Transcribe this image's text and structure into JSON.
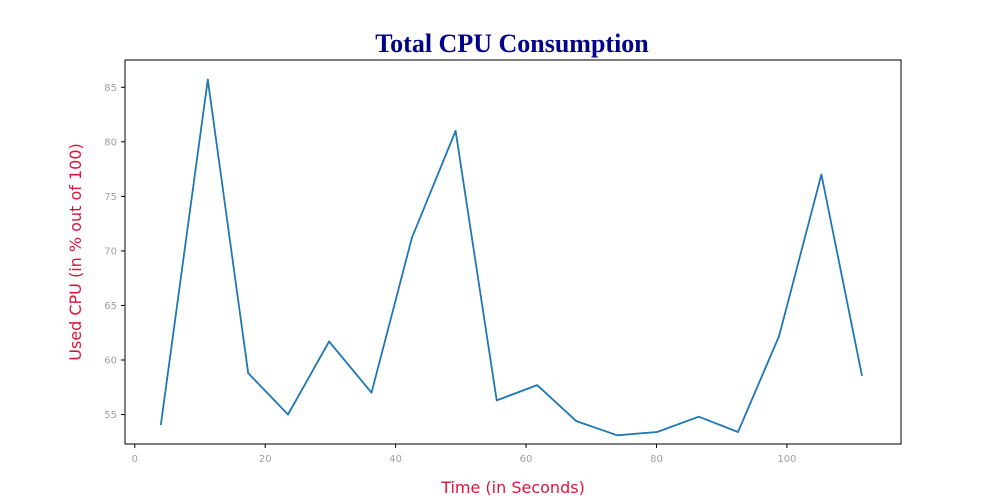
{
  "chart_data": {
    "type": "line",
    "title": "Total CPU Consumption",
    "xlabel": "Time (in Seconds)",
    "ylabel": "Used CPU (in % out of 100)",
    "xlim": [
      -1.5,
      117.5
    ],
    "ylim": [
      52.3,
      87.5
    ],
    "x_ticks": [
      0,
      20,
      40,
      60,
      80,
      100
    ],
    "y_ticks": [
      55,
      60,
      65,
      70,
      75,
      80,
      85
    ],
    "grid": false,
    "series": [
      {
        "x": [
          4,
          11.2,
          17.4,
          23.5,
          29.8,
          36.3,
          42.5,
          49.2,
          55.5,
          61.7,
          67.7,
          74.0,
          80.1,
          86.5,
          92.5,
          98.8,
          105.3,
          111.5
        ],
        "values": [
          54.1,
          85.7,
          58.8,
          55.0,
          61.7,
          57.0,
          71.2,
          81.0,
          56.3,
          57.7,
          54.4,
          53.1,
          53.4,
          54.8,
          53.4,
          62.2,
          77.0,
          58.6
        ]
      }
    ],
    "colors": {
      "line": "#1f77b4",
      "title": "#00008b",
      "axis_label": "#dc143c",
      "tick_label": "#a0a0a0",
      "axes": "#000000"
    }
  }
}
